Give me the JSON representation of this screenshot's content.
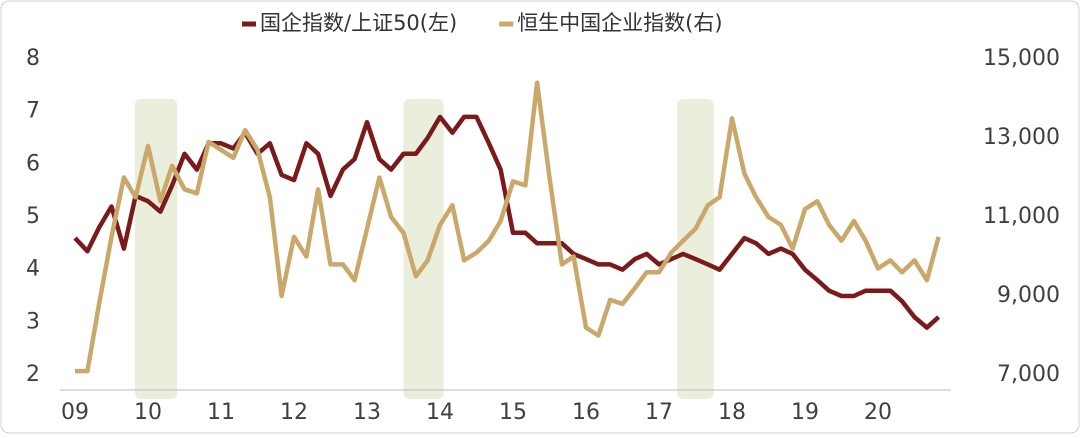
{
  "chart_data": {
    "type": "line",
    "x": [
      2009.0,
      2009.17,
      2009.33,
      2009.5,
      2009.67,
      2009.83,
      2010.0,
      2010.17,
      2010.33,
      2010.5,
      2010.67,
      2010.83,
      2011.0,
      2011.17,
      2011.33,
      2011.5,
      2011.67,
      2011.83,
      2012.0,
      2012.17,
      2012.33,
      2012.5,
      2012.67,
      2012.83,
      2013.0,
      2013.17,
      2013.33,
      2013.5,
      2013.67,
      2013.83,
      2014.0,
      2014.17,
      2014.33,
      2014.5,
      2014.67,
      2014.83,
      2015.0,
      2015.17,
      2015.33,
      2015.5,
      2015.67,
      2015.83,
      2016.0,
      2016.17,
      2016.33,
      2016.5,
      2016.67,
      2016.83,
      2017.0,
      2017.17,
      2017.33,
      2017.5,
      2017.67,
      2017.83,
      2018.0,
      2018.17,
      2018.33,
      2018.5,
      2018.67,
      2018.83,
      2019.0,
      2019.17,
      2019.33,
      2019.5,
      2019.67,
      2019.83,
      2020.0,
      2020.17,
      2020.33,
      2020.5,
      2020.67,
      2020.83
    ],
    "series": [
      {
        "name": "国企指数/上证50(左)",
        "color": "#7b1a1a",
        "axis": "y",
        "values": [
          4.6,
          4.35,
          4.8,
          5.2,
          4.4,
          5.4,
          5.3,
          5.1,
          5.6,
          6.2,
          5.9,
          6.4,
          6.4,
          6.3,
          6.6,
          6.2,
          6.4,
          5.8,
          5.7,
          6.4,
          6.2,
          5.4,
          5.9,
          6.1,
          6.8,
          6.1,
          5.9,
          6.2,
          6.2,
          6.5,
          6.9,
          6.6,
          6.9,
          6.9,
          6.4,
          5.9,
          4.7,
          4.7,
          4.5,
          4.5,
          4.5,
          4.3,
          4.2,
          4.1,
          4.1,
          4.0,
          4.2,
          4.3,
          4.1,
          4.2,
          4.3,
          4.2,
          4.1,
          4.0,
          4.3,
          4.6,
          4.5,
          4.3,
          4.4,
          4.3,
          4.0,
          3.8,
          3.6,
          3.5,
          3.5,
          3.6,
          3.6,
          3.6,
          3.4,
          3.1,
          2.9,
          3.1
        ]
      },
      {
        "name": "恒生中国企业指数(右)",
        "color": "#c9a86a",
        "axis": "y2",
        "values": [
          7100,
          7100,
          8800,
          10500,
          12000,
          11500,
          12800,
          11400,
          12300,
          11700,
          11600,
          12900,
          12700,
          12500,
          13200,
          12700,
          11500,
          9000,
          10500,
          10000,
          11700,
          9800,
          9800,
          9400,
          10700,
          12000,
          11000,
          10600,
          9500,
          9900,
          10800,
          11300,
          9900,
          10100,
          10400,
          10900,
          11900,
          11800,
          14400,
          12000,
          9800,
          10000,
          8200,
          8000,
          8900,
          8800,
          9200,
          9600,
          9600,
          10100,
          10400,
          10700,
          11300,
          11500,
          13500,
          12100,
          11500,
          11000,
          10800,
          10200,
          11200,
          11400,
          10800,
          10400,
          10900,
          10400,
          9700,
          9900,
          9600,
          9900,
          9400,
          10500
        ]
      }
    ],
    "xlim": [
      2009,
      2021
    ],
    "xticks": [
      {
        "value": 2009,
        "label": "09"
      },
      {
        "value": 2010,
        "label": "10"
      },
      {
        "value": 2011,
        "label": "11"
      },
      {
        "value": 2012,
        "label": "12"
      },
      {
        "value": 2013,
        "label": "13"
      },
      {
        "value": 2014,
        "label": "14"
      },
      {
        "value": 2015,
        "label": "15"
      },
      {
        "value": 2016,
        "label": "16"
      },
      {
        "value": 2017,
        "label": "17"
      },
      {
        "value": 2018,
        "label": "18"
      },
      {
        "value": 2019,
        "label": "19"
      },
      {
        "value": 2020,
        "label": "20"
      }
    ],
    "ylim": [
      2,
      8
    ],
    "yticks": [
      2,
      3,
      4,
      5,
      6,
      7,
      8
    ],
    "y2lim": [
      7000,
      15000
    ],
    "y2ticks": [
      {
        "value": 7000,
        "label": "7,000"
      },
      {
        "value": 9000,
        "label": "9,000"
      },
      {
        "value": 11000,
        "label": "11,000"
      },
      {
        "value": 13000,
        "label": "13,000"
      },
      {
        "value": 15000,
        "label": "15,000"
      }
    ],
    "shaded_regions": [
      [
        2009.82,
        2010.4
      ],
      [
        2013.5,
        2014.05
      ],
      [
        2017.25,
        2017.75
      ]
    ],
    "shade_color": "#e9efdc",
    "legend": "top"
  }
}
